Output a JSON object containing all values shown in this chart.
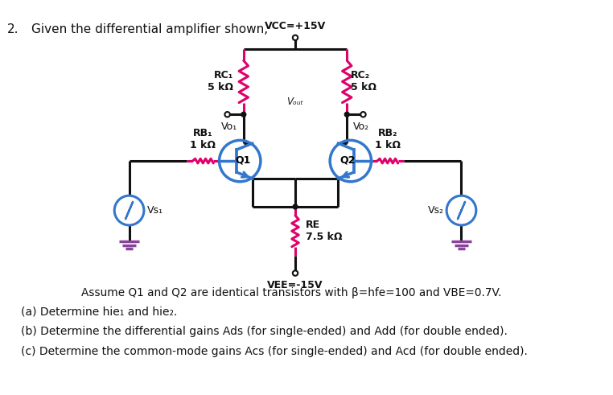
{
  "title_number": "2.",
  "title_text": "Given the differential amplifier shown,",
  "vcc_label": "VCC=+15V",
  "vee_label": "VEE=-15V",
  "rc1_label": "RC₁\n5 kΩ",
  "rc2_label": "RC₂\n5 kΩ",
  "rb1_label": "RB₁\n1 kΩ",
  "rb2_label": "RB₂\n1 kΩ",
  "re_label": "RE\n7.5 kΩ",
  "q1_label": "Q1",
  "q2_label": "Q2",
  "vs1_label": "Vs₁",
  "vs2_label": "Vs₂",
  "vo1_label": "Vo₁",
  "vo2_label": "Vo₂",
  "vout_label": "Vₒᵤₜ",
  "assume_text": "Assume Q1 and Q2 are identical transistors with β=hfe=100 and VBE=0.7V.",
  "part_a": "(a) Determine hie₁ and hie₂.",
  "part_b": "(b) Determine the differential gains Ads (for single-ended) and Add (for double ended).",
  "part_c": "(c) Determine the common-mode gains Acs (for single-ended) and Acd (for double ended).",
  "resistor_color": "#e0006a",
  "wire_color": "#111111",
  "transistor_color": "#3377cc",
  "source_color": "#3377cc",
  "ground_color": "#884499",
  "bg_color": "#ffffff",
  "text_color": "#000000",
  "lw_wire": 2.2,
  "lw_component": 2.2
}
